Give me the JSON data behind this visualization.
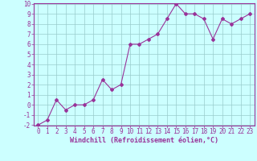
{
  "x": [
    0,
    1,
    2,
    3,
    4,
    5,
    6,
    7,
    8,
    9,
    10,
    11,
    12,
    13,
    14,
    15,
    16,
    17,
    18,
    19,
    20,
    21,
    22,
    23
  ],
  "y": [
    -2,
    -1.5,
    0.5,
    -0.5,
    0,
    0,
    0.5,
    2.5,
    1.5,
    2,
    6,
    6,
    6.5,
    7,
    8.5,
    10,
    9,
    9,
    8.5,
    6.5,
    8.5,
    8,
    8.5,
    9
  ],
  "line_color": "#993399",
  "marker": "D",
  "marker_size": 2.0,
  "bg_color": "#ccffff",
  "grid_color": "#99cccc",
  "xlabel": "Windchill (Refroidissement éolien,°C)",
  "xlabel_color": "#993399",
  "tick_color": "#993399",
  "spine_color": "#993399",
  "ylim": [
    -2,
    10
  ],
  "xlim": [
    -0.5,
    23.5
  ],
  "yticks": [
    -2,
    -1,
    0,
    1,
    2,
    3,
    4,
    5,
    6,
    7,
    8,
    9,
    10
  ],
  "xticks": [
    0,
    1,
    2,
    3,
    4,
    5,
    6,
    7,
    8,
    9,
    10,
    11,
    12,
    13,
    14,
    15,
    16,
    17,
    18,
    19,
    20,
    21,
    22,
    23
  ],
  "xlabel_fontsize": 6.0,
  "tick_fontsize": 5.5,
  "linewidth": 0.8
}
